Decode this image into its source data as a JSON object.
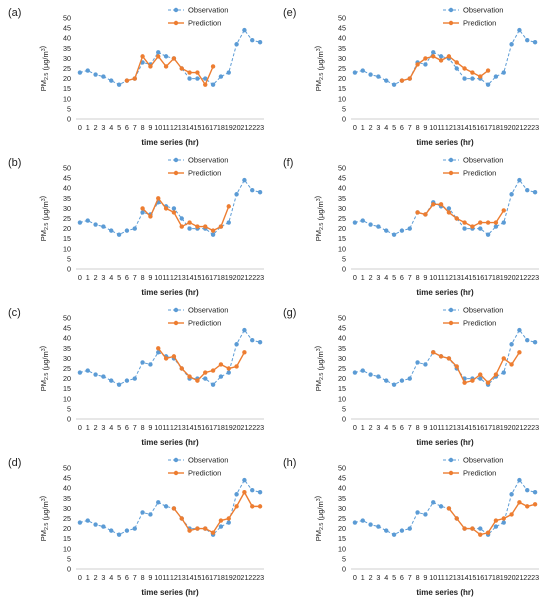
{
  "colors": {
    "observation": "#5b9bd5",
    "prediction": "#ed7d31",
    "axis": "#bfbfbf"
  },
  "chart_data": [
    {
      "type": "line",
      "panel": "(a)",
      "ylabel": "PM_{2.5} (μg/m^3)",
      "xlabel": "time series (hr)",
      "ylim": [
        0,
        50
      ],
      "yticks": [
        0,
        5,
        10,
        15,
        20,
        25,
        30,
        35,
        40,
        45,
        50
      ],
      "x": [
        0,
        1,
        2,
        3,
        4,
        5,
        6,
        7,
        8,
        9,
        10,
        11,
        12,
        13,
        14,
        15,
        16,
        17,
        18,
        19,
        20,
        21,
        22,
        23
      ],
      "legend_position": "top-right",
      "series": [
        {
          "name": "Observation",
          "x": [
            0,
            1,
            2,
            3,
            4,
            5,
            6,
            7,
            8,
            9,
            10,
            11,
            12,
            13,
            14,
            15,
            16,
            17,
            18,
            19,
            20,
            21,
            22,
            23
          ],
          "values": [
            23,
            24,
            22,
            21,
            19,
            17,
            19,
            20,
            28,
            27,
            33,
            31,
            30,
            25,
            20,
            20,
            20,
            17,
            21,
            23,
            37,
            44,
            39,
            38
          ]
        },
        {
          "name": "Prediction",
          "x": [
            6,
            7,
            8,
            9,
            10,
            11,
            12,
            13,
            14,
            15,
            16,
            17
          ],
          "values": [
            19,
            20,
            31,
            26,
            31,
            26,
            30,
            25,
            23,
            23,
            17,
            26
          ]
        }
      ]
    },
    {
      "type": "line",
      "panel": "(b)",
      "ylabel": "PM_{2.5} (μg/m^3)",
      "xlabel": "time series (hr)",
      "ylim": [
        0,
        50
      ],
      "yticks": [
        0,
        5,
        10,
        15,
        20,
        25,
        30,
        35,
        40,
        45,
        50
      ],
      "x": [
        0,
        1,
        2,
        3,
        4,
        5,
        6,
        7,
        8,
        9,
        10,
        11,
        12,
        13,
        14,
        15,
        16,
        17,
        18,
        19,
        20,
        21,
        22,
        23
      ],
      "legend_position": "top-right",
      "series": [
        {
          "name": "Observation",
          "x": [
            0,
            1,
            2,
            3,
            4,
            5,
            6,
            7,
            8,
            9,
            10,
            11,
            12,
            13,
            14,
            15,
            16,
            17,
            18,
            19,
            20,
            21,
            22,
            23
          ],
          "values": [
            23,
            24,
            22,
            21,
            19,
            17,
            19,
            20,
            28,
            27,
            33,
            31,
            30,
            25,
            20,
            20,
            20,
            17,
            21,
            23,
            37,
            44,
            39,
            38
          ]
        },
        {
          "name": "Prediction",
          "x": [
            8,
            9,
            10,
            11,
            12,
            13,
            14,
            15,
            16,
            17,
            18,
            19
          ],
          "values": [
            30,
            26,
            35,
            30,
            28,
            21,
            23,
            21,
            21,
            19,
            21,
            31
          ]
        }
      ]
    },
    {
      "type": "line",
      "panel": "(c)",
      "ylabel": "PM_{2.5} (μg/m^3)",
      "xlabel": "time series (hr)",
      "ylim": [
        0,
        50
      ],
      "yticks": [
        0,
        5,
        10,
        15,
        20,
        25,
        30,
        35,
        40,
        45,
        50
      ],
      "x": [
        0,
        1,
        2,
        3,
        4,
        5,
        6,
        7,
        8,
        9,
        10,
        11,
        12,
        13,
        14,
        15,
        16,
        17,
        18,
        19,
        20,
        21,
        22,
        23
      ],
      "legend_position": "top-right",
      "series": [
        {
          "name": "Observation",
          "x": [
            0,
            1,
            2,
            3,
            4,
            5,
            6,
            7,
            8,
            9,
            10,
            11,
            12,
            13,
            14,
            15,
            16,
            17,
            18,
            19,
            20,
            21,
            22,
            23
          ],
          "values": [
            23,
            24,
            22,
            21,
            19,
            17,
            19,
            20,
            28,
            27,
            33,
            31,
            30,
            25,
            20,
            20,
            20,
            17,
            21,
            23,
            37,
            44,
            39,
            38
          ]
        },
        {
          "name": "Prediction",
          "x": [
            10,
            11,
            12,
            13,
            14,
            15,
            16,
            17,
            18,
            19,
            20,
            21
          ],
          "values": [
            35,
            30,
            31,
            25,
            21,
            19,
            23,
            24,
            27,
            25,
            26,
            33
          ]
        }
      ]
    },
    {
      "type": "line",
      "panel": "(d)",
      "ylabel": "PM_{2.5} (μg/m^3)",
      "xlabel": "time series (hr)",
      "ylim": [
        0,
        50
      ],
      "yticks": [
        0,
        5,
        10,
        15,
        20,
        25,
        30,
        35,
        40,
        45,
        50
      ],
      "x": [
        0,
        1,
        2,
        3,
        4,
        5,
        6,
        7,
        8,
        9,
        10,
        11,
        12,
        13,
        14,
        15,
        16,
        17,
        18,
        19,
        20,
        21,
        22,
        23
      ],
      "legend_position": "top-right",
      "series": [
        {
          "name": "Observation",
          "x": [
            0,
            1,
            2,
            3,
            4,
            5,
            6,
            7,
            8,
            9,
            10,
            11,
            12,
            13,
            14,
            15,
            16,
            17,
            18,
            19,
            20,
            21,
            22,
            23
          ],
          "values": [
            23,
            24,
            22,
            21,
            19,
            17,
            19,
            20,
            28,
            27,
            33,
            31,
            30,
            25,
            20,
            20,
            20,
            17,
            21,
            23,
            37,
            44,
            39,
            38
          ]
        },
        {
          "name": "Prediction",
          "x": [
            12,
            13,
            14,
            15,
            16,
            17,
            18,
            19,
            20,
            21,
            22,
            23
          ],
          "values": [
            30,
            25,
            19,
            20,
            20,
            18,
            24,
            25,
            31,
            38,
            31,
            31
          ]
        }
      ]
    },
    {
      "type": "line",
      "panel": "(e)",
      "ylabel": "PM_{2.5} (μg/m^3)",
      "xlabel": "time series (hr)",
      "ylim": [
        0,
        50
      ],
      "yticks": [
        0,
        5,
        10,
        15,
        20,
        25,
        30,
        35,
        40,
        45,
        50
      ],
      "x": [
        0,
        1,
        2,
        3,
        4,
        5,
        6,
        7,
        8,
        9,
        10,
        11,
        12,
        13,
        14,
        15,
        16,
        17,
        18,
        19,
        20,
        21,
        22,
        23
      ],
      "legend_position": "top-right",
      "series": [
        {
          "name": "Observation",
          "x": [
            0,
            1,
            2,
            3,
            4,
            5,
            6,
            7,
            8,
            9,
            10,
            11,
            12,
            13,
            14,
            15,
            16,
            17,
            18,
            19,
            20,
            21,
            22,
            23
          ],
          "values": [
            23,
            24,
            22,
            21,
            19,
            17,
            19,
            20,
            28,
            27,
            33,
            31,
            30,
            25,
            20,
            20,
            20,
            17,
            21,
            23,
            37,
            44,
            39,
            38
          ]
        },
        {
          "name": "Prediction",
          "x": [
            6,
            7,
            8,
            9,
            10,
            11,
            12,
            13,
            14,
            15,
            16,
            17
          ],
          "values": [
            19,
            20,
            27,
            30,
            31,
            29,
            31,
            28,
            25,
            23,
            21,
            24
          ]
        }
      ]
    },
    {
      "type": "line",
      "panel": "(f)",
      "ylabel": "PM_{2.5} (μg/m^3)",
      "xlabel": "time series (hr)",
      "ylim": [
        0,
        50
      ],
      "yticks": [
        0,
        5,
        10,
        15,
        20,
        25,
        30,
        35,
        40,
        45,
        50
      ],
      "x": [
        0,
        1,
        2,
        3,
        4,
        5,
        6,
        7,
        8,
        9,
        10,
        11,
        12,
        13,
        14,
        15,
        16,
        17,
        18,
        19,
        20,
        21,
        22,
        23
      ],
      "legend_position": "top-right",
      "series": [
        {
          "name": "Observation",
          "x": [
            0,
            1,
            2,
            3,
            4,
            5,
            6,
            7,
            8,
            9,
            10,
            11,
            12,
            13,
            14,
            15,
            16,
            17,
            18,
            19,
            20,
            21,
            22,
            23
          ],
          "values": [
            23,
            24,
            22,
            21,
            19,
            17,
            19,
            20,
            28,
            27,
            33,
            31,
            30,
            25,
            20,
            20,
            20,
            17,
            21,
            23,
            37,
            44,
            39,
            38
          ]
        },
        {
          "name": "Prediction",
          "x": [
            8,
            9,
            10,
            11,
            12,
            13,
            14,
            15,
            16,
            17,
            18,
            19
          ],
          "values": [
            28,
            27,
            32,
            32,
            28,
            25,
            23,
            21,
            23,
            23,
            23,
            29
          ]
        }
      ]
    },
    {
      "type": "line",
      "panel": "(g)",
      "ylabel": "PM_{2.5} (μg/m^3)",
      "xlabel": "time series (hr)",
      "ylim": [
        0,
        50
      ],
      "yticks": [
        0,
        5,
        10,
        15,
        20,
        25,
        30,
        35,
        40,
        45,
        50
      ],
      "x": [
        0,
        1,
        2,
        3,
        4,
        5,
        6,
        7,
        8,
        9,
        10,
        11,
        12,
        13,
        14,
        15,
        16,
        17,
        18,
        19,
        20,
        21,
        22,
        23
      ],
      "legend_position": "top-right",
      "series": [
        {
          "name": "Observation",
          "x": [
            0,
            1,
            2,
            3,
            4,
            5,
            6,
            7,
            8,
            9,
            10,
            11,
            12,
            13,
            14,
            15,
            16,
            17,
            18,
            19,
            20,
            21,
            22,
            23
          ],
          "values": [
            23,
            24,
            22,
            21,
            19,
            17,
            19,
            20,
            28,
            27,
            33,
            31,
            30,
            25,
            20,
            20,
            20,
            17,
            21,
            23,
            37,
            44,
            39,
            38
          ]
        },
        {
          "name": "Prediction",
          "x": [
            10,
            11,
            12,
            13,
            14,
            15,
            16,
            17,
            18,
            19,
            20,
            21
          ],
          "values": [
            33,
            31,
            30,
            26,
            18,
            19,
            22,
            18,
            22,
            30,
            27,
            33
          ]
        }
      ]
    },
    {
      "type": "line",
      "panel": "(h)",
      "ylabel": "PM_{2.5} (μg/m^3)",
      "xlabel": "time series (hr)",
      "ylim": [
        0,
        50
      ],
      "yticks": [
        0,
        5,
        10,
        15,
        20,
        25,
        30,
        35,
        40,
        45,
        50
      ],
      "x": [
        0,
        1,
        2,
        3,
        4,
        5,
        6,
        7,
        8,
        9,
        10,
        11,
        12,
        13,
        14,
        15,
        16,
        17,
        18,
        19,
        20,
        21,
        22,
        23
      ],
      "legend_position": "top-right",
      "series": [
        {
          "name": "Observation",
          "x": [
            0,
            1,
            2,
            3,
            4,
            5,
            6,
            7,
            8,
            9,
            10,
            11,
            12,
            13,
            14,
            15,
            16,
            17,
            18,
            19,
            20,
            21,
            22,
            23
          ],
          "values": [
            23,
            24,
            22,
            21,
            19,
            17,
            19,
            20,
            28,
            27,
            33,
            31,
            30,
            25,
            20,
            20,
            20,
            17,
            21,
            23,
            37,
            44,
            39,
            38
          ]
        },
        {
          "name": "Prediction",
          "x": [
            12,
            13,
            14,
            15,
            16,
            17,
            18,
            19,
            20,
            21,
            22,
            23
          ],
          "values": [
            30,
            25,
            20,
            20,
            17,
            18,
            24,
            25,
            27,
            33,
            31,
            32
          ]
        }
      ]
    }
  ]
}
